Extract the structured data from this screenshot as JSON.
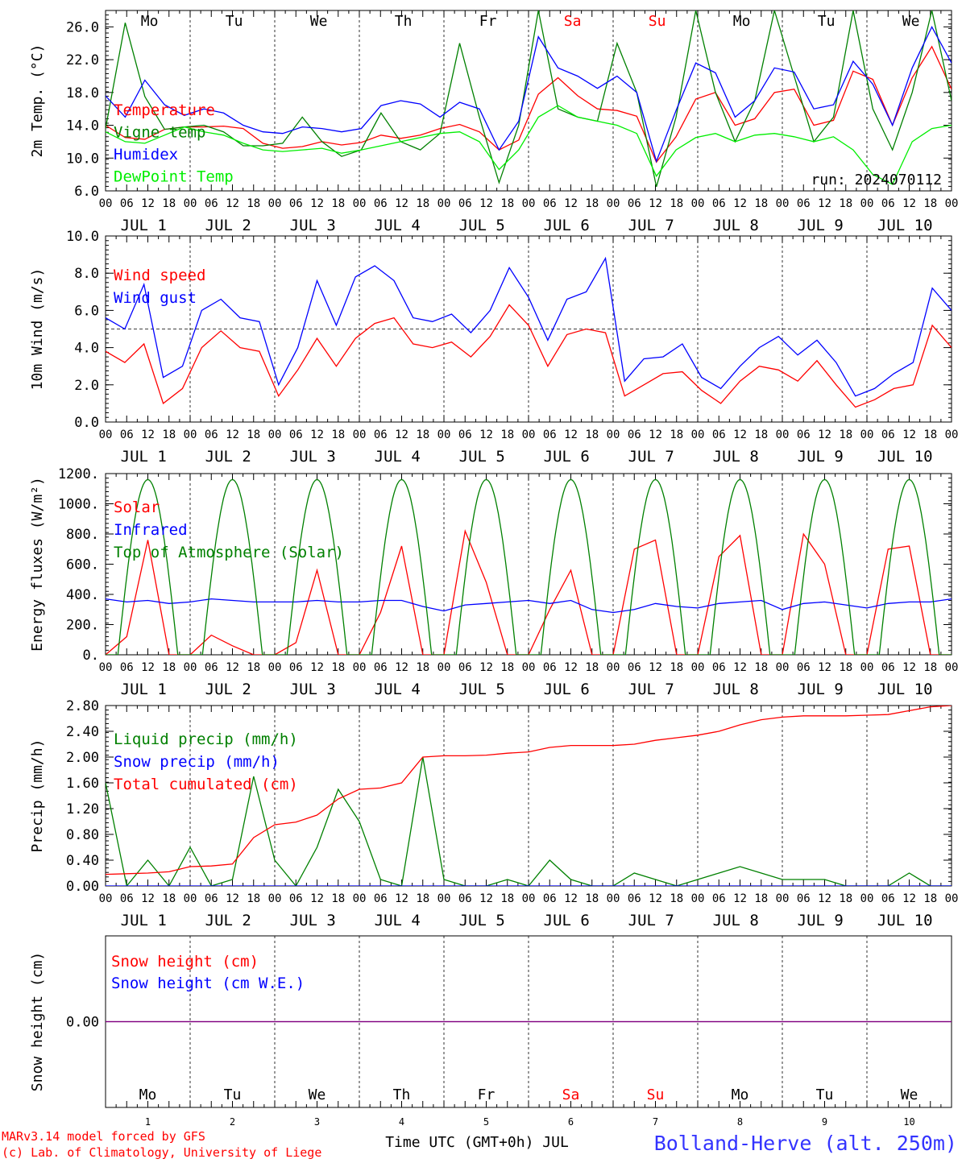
{
  "run_label": "run: 2024070112",
  "time_axis": {
    "hours": [
      "00",
      "06",
      "12",
      "18"
    ],
    "final_hour": "00",
    "day_labels": [
      "JUL  1",
      "JUL  2",
      "JUL  3",
      "JUL  4",
      "JUL  5",
      "JUL  6",
      "JUL  7",
      "JUL  8",
      "JUL  9",
      "JUL 10"
    ],
    "weekdays": [
      "Mo",
      "Tu",
      "We",
      "Th",
      "Fr",
      "Sa",
      "Su",
      "Mo",
      "Tu",
      "We"
    ],
    "weekday_colors": [
      "#000000",
      "#000000",
      "#000000",
      "#000000",
      "#000000",
      "#ff0000",
      "#ff0000",
      "#000000",
      "#000000",
      "#000000"
    ],
    "day_numbers": [
      "1",
      "2",
      "3",
      "4",
      "5",
      "6",
      "7",
      "8",
      "9",
      "10"
    ]
  },
  "footer": {
    "model_line": "MARv3.14 model forced by GFS",
    "lab_line": "(c) Lab. of Climatology, University of Liege",
    "xlabel": "Time UTC (GMT+0h) JUL",
    "station": "Bolland-Herve (alt. 250m)"
  },
  "colors": {
    "red": "#ff0000",
    "green": "#008000",
    "blue": "#0000ff",
    "light_green": "#00ee00",
    "purple": "#800080",
    "station": "#3333ff"
  },
  "chart_data": [
    {
      "id": "temp",
      "type": "line",
      "ylabel": "2m Temp. (°C)",
      "ylim": [
        6,
        28
      ],
      "yticks": [
        6.0,
        10.0,
        14.0,
        18.0,
        22.0,
        26.0
      ],
      "ytick_labels": [
        "6.0",
        "10.0",
        "14.0",
        "18.0",
        "22.0",
        "26.0"
      ],
      "x_step_hours": 6,
      "series": [
        {
          "name": "Temperature",
          "color": "#ff0000",
          "values": [
            14.0,
            12.5,
            12.3,
            13.5,
            13.8,
            13.8,
            13.9,
            13.6,
            11.8,
            11.2,
            11.4,
            12.0,
            11.6,
            11.9,
            12.8,
            12.4,
            12.8,
            13.6,
            14.1,
            13.2,
            11.0,
            12.2,
            17.8,
            19.8,
            17.6,
            16.0,
            15.8,
            15.1,
            9.5,
            12.6,
            17.2,
            18.0,
            14.0,
            14.8,
            18.0,
            18.4,
            14.0,
            14.6,
            20.6,
            19.6,
            14.0,
            19.8,
            23.6,
            18.4
          ]
        },
        {
          "name": "Vigne temp",
          "color": "#008000",
          "values": [
            13.6,
            26.5,
            17.5,
            13.5,
            13.8,
            14.0,
            13.2,
            11.5,
            11.5,
            11.8,
            15.0,
            12.0,
            10.2,
            11.0,
            15.5,
            12.0,
            11.0,
            13.0,
            24.0,
            15.0,
            7.0,
            14.0,
            28.0,
            16.0,
            15.0,
            14.5,
            24.0,
            18.0,
            6.5,
            15.0,
            28.0,
            18.0,
            12.0,
            17.0,
            28.0,
            20.0,
            12.0,
            15.0,
            28.0,
            16.0,
            11.0,
            18.0,
            28.0,
            17.0
          ]
        },
        {
          "name": "Humidex",
          "color": "#0000ff",
          "values": [
            17.6,
            15.0,
            19.5,
            16.5,
            15.2,
            16.0,
            15.5,
            14.0,
            13.2,
            13.0,
            13.8,
            13.6,
            13.2,
            13.6,
            16.4,
            17.0,
            16.6,
            15.0,
            16.8,
            16.0,
            11.0,
            14.5,
            24.8,
            21.0,
            20.0,
            18.5,
            20.0,
            18.0,
            9.6,
            15.8,
            21.6,
            20.4,
            15.0,
            17.0,
            21.0,
            20.5,
            16.0,
            16.5,
            21.8,
            19.0,
            14.0,
            21.0,
            26.0,
            21.6
          ]
        },
        {
          "name": "DewPoint Temp",
          "color": "#00ee00",
          "values": [
            13.2,
            12.0,
            11.8,
            12.8,
            13.8,
            13.2,
            12.8,
            11.8,
            11.0,
            10.8,
            11.0,
            11.2,
            10.6,
            11.0,
            11.5,
            12.0,
            12.5,
            13.0,
            13.2,
            12.0,
            8.6,
            11.0,
            15.0,
            16.4,
            15.0,
            14.5,
            14.0,
            13.0,
            7.8,
            11.0,
            12.5,
            13.0,
            12.0,
            12.8,
            13.0,
            12.6,
            12.0,
            12.6,
            11.0,
            8.0,
            6.8,
            12.0,
            13.6,
            14.0
          ]
        }
      ]
    },
    {
      "id": "wind",
      "type": "line",
      "ylabel": "10m Wind (m/s)",
      "ylim": [
        0,
        10
      ],
      "yticks": [
        0.0,
        2.0,
        4.0,
        6.0,
        8.0,
        10.0
      ],
      "ytick_labels": [
        "0.0",
        "2.0",
        "4.0",
        "6.0",
        "8.0",
        "10.0"
      ],
      "dashed_reference": 5.0,
      "x_step_hours": 6,
      "series": [
        {
          "name": "Wind speed",
          "color": "#ff0000",
          "values": [
            3.8,
            3.2,
            4.2,
            1.0,
            1.8,
            4.0,
            4.9,
            4.0,
            3.8,
            1.4,
            2.8,
            4.5,
            3.0,
            4.5,
            5.3,
            5.6,
            4.2,
            4.0,
            4.3,
            3.5,
            4.6,
            6.3,
            5.2,
            3.0,
            4.7,
            5.0,
            4.8,
            1.4,
            2.0,
            2.6,
            2.7,
            1.7,
            1.0,
            2.2,
            3.0,
            2.8,
            2.2,
            3.3,
            2.0,
            0.8,
            1.2,
            1.8,
            2.0,
            5.2,
            4.0
          ]
        },
        {
          "name": "Wind gust",
          "color": "#0000ff",
          "values": [
            5.6,
            5.0,
            7.4,
            2.4,
            3.0,
            6.0,
            6.6,
            5.6,
            5.4,
            2.0,
            4.0,
            7.6,
            5.2,
            7.8,
            8.4,
            7.6,
            5.6,
            5.4,
            5.8,
            4.8,
            6.0,
            8.3,
            6.7,
            4.4,
            6.6,
            7.0,
            8.8,
            2.2,
            3.4,
            3.5,
            4.2,
            2.4,
            1.8,
            3.0,
            4.0,
            4.6,
            3.6,
            4.4,
            3.2,
            1.4,
            1.8,
            2.6,
            3.2,
            7.2,
            6.0
          ]
        }
      ]
    },
    {
      "id": "energy",
      "type": "line",
      "ylabel": "Energy fluxes (W/m²)",
      "ylim": [
        0,
        1200
      ],
      "yticks": [
        0,
        200,
        400,
        600,
        800,
        1000,
        1200
      ],
      "ytick_labels": [
        "0.",
        "200.",
        "400.",
        "600.",
        "800.",
        "1000.",
        "1200."
      ],
      "x_step_hours": 6,
      "series": [
        {
          "name": "Solar",
          "color": "#ff0000",
          "values": [
            0,
            120,
            760,
            0,
            0,
            130,
            60,
            0,
            0,
            80,
            560,
            0,
            0,
            280,
            720,
            0,
            0,
            820,
            480,
            0,
            0,
            300,
            560,
            0,
            0,
            700,
            760,
            0,
            0,
            650,
            790,
            0,
            0,
            800,
            600,
            0,
            0,
            700,
            720,
            0,
            0
          ]
        },
        {
          "name": "Infrared",
          "color": "#0000ff",
          "values": [
            370,
            350,
            360,
            340,
            350,
            370,
            360,
            350,
            350,
            350,
            360,
            350,
            350,
            360,
            360,
            320,
            290,
            330,
            340,
            350,
            360,
            340,
            360,
            300,
            280,
            300,
            340,
            320,
            310,
            340,
            350,
            360,
            300,
            340,
            350,
            330,
            310,
            340,
            350,
            350,
            370
          ]
        },
        {
          "name": "Top of Atmosphere (Solar)",
          "color": "#008000",
          "peak": 1160
        }
      ]
    },
    {
      "id": "precip",
      "type": "line",
      "ylabel": "Precip (mm/h)",
      "ylim": [
        0,
        2.8
      ],
      "yticks": [
        0.0,
        0.4,
        0.8,
        1.2,
        1.6,
        2.0,
        2.4,
        2.8
      ],
      "ytick_labels": [
        "0.00",
        "0.40",
        "0.80",
        "1.20",
        "1.60",
        "2.00",
        "2.40",
        "2.80"
      ],
      "x_step_hours": 6,
      "series": [
        {
          "name": "Liquid precip (mm/h)",
          "color": "#008000",
          "values": [
            1.6,
            0,
            0.4,
            0,
            0.6,
            0,
            0.1,
            1.7,
            0.4,
            0,
            0.6,
            1.5,
            1.0,
            0.1,
            0,
            2.0,
            0.1,
            0,
            0,
            0.1,
            0,
            0.4,
            0.1,
            0,
            0,
            0.2,
            0.1,
            0,
            0.1,
            0.2,
            0.3,
            0.2,
            0.1,
            0.1,
            0.1,
            0,
            0,
            0,
            0.2,
            0,
            0
          ]
        },
        {
          "name": "Snow precip (mm/h)",
          "color": "#0000ff",
          "values": [
            0,
            0,
            0,
            0,
            0,
            0,
            0,
            0,
            0,
            0,
            0,
            0,
            0,
            0,
            0,
            0,
            0,
            0,
            0,
            0,
            0,
            0,
            0,
            0,
            0,
            0,
            0,
            0,
            0,
            0,
            0,
            0,
            0,
            0,
            0,
            0,
            0,
            0,
            0,
            0,
            0
          ]
        },
        {
          "name": "Total cumulated (cm)",
          "color": "#ff0000",
          "values": [
            0.18,
            0.19,
            0.2,
            0.22,
            0.3,
            0.31,
            0.34,
            0.75,
            0.95,
            0.99,
            1.1,
            1.35,
            1.5,
            1.52,
            1.6,
            2.0,
            2.02,
            2.02,
            2.03,
            2.06,
            2.08,
            2.15,
            2.18,
            2.18,
            2.18,
            2.2,
            2.26,
            2.3,
            2.34,
            2.4,
            2.5,
            2.58,
            2.62,
            2.64,
            2.64,
            2.64,
            2.65,
            2.66,
            2.72,
            2.78,
            2.8
          ]
        }
      ]
    },
    {
      "id": "snow",
      "type": "line",
      "ylabel": "Snow height (cm)",
      "ylim": [
        -1,
        1
      ],
      "yticks": [
        0.0
      ],
      "ytick_labels": [
        "0.00"
      ],
      "x_step_hours": 6,
      "series": [
        {
          "name": "Snow height (cm)",
          "color": "#ff0000",
          "values": [
            0,
            0
          ]
        },
        {
          "name": "Snow height (cm W.E.)",
          "color": "#0000ff",
          "values": [
            0,
            0
          ]
        }
      ]
    }
  ]
}
